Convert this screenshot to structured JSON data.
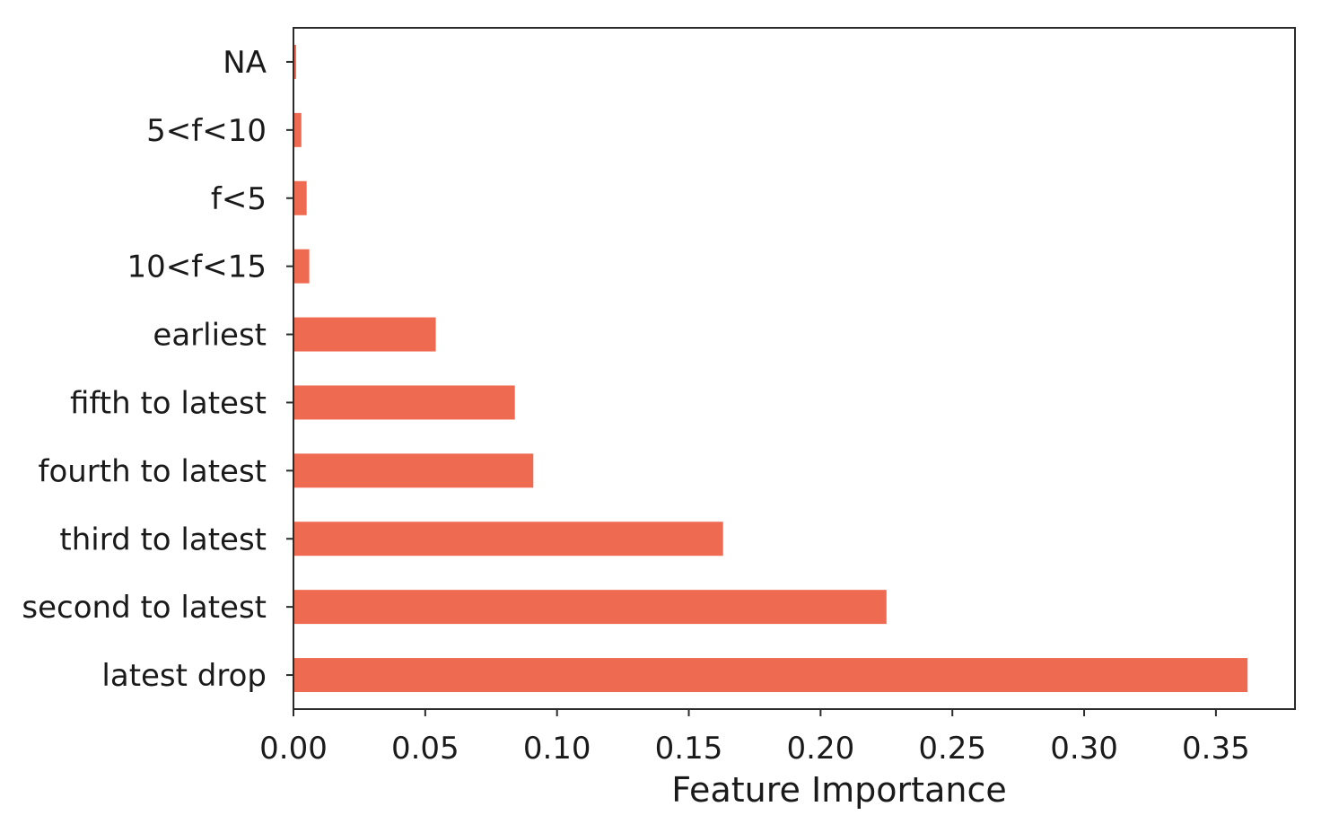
{
  "chart_data": {
    "type": "bar",
    "orientation": "horizontal",
    "categories": [
      "NA",
      "5<f<10",
      "f<5",
      "10<f<15",
      "earliest",
      "fifth to latest",
      "fourth to latest",
      "third to latest",
      "second to latest",
      "latest drop"
    ],
    "values": [
      0.001,
      0.003,
      0.005,
      0.006,
      0.054,
      0.084,
      0.091,
      0.163,
      0.225,
      0.362
    ],
    "title": "",
    "xlabel": "Feature Importance",
    "ylabel": "",
    "xlim": [
      0,
      0.38
    ],
    "xticks": [
      0.0,
      0.05,
      0.1,
      0.15,
      0.2,
      0.25,
      0.3,
      0.35
    ],
    "xtick_labels": [
      "0.00",
      "0.05",
      "0.10",
      "0.15",
      "0.20",
      "0.25",
      "0.30",
      "0.35"
    ],
    "bar_color": "#ee6a50",
    "grid": false,
    "legend": "none"
  }
}
